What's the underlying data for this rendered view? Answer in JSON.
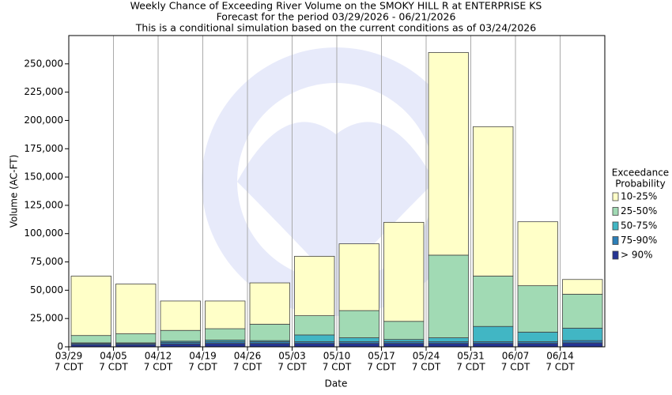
{
  "chart_data": {
    "type": "stacked_bar",
    "title_lines": [
      "Weekly Chance of Exceeding River Volume on the SMOKY HILL R at ENTERPRISE KS",
      "Forecast for the period 03/29/2026 - 06/21/2026",
      "This is a conditional simulation based on the current conditions as of 03/24/2026"
    ],
    "x_label": "Date",
    "y_label": "Volume (AC-FT)",
    "categories": [
      "03/29",
      "04/05",
      "04/12",
      "04/19",
      "04/26",
      "05/03",
      "05/10",
      "05/17",
      "05/24",
      "05/31",
      "06/07",
      "06/14"
    ],
    "category_sublabels": [
      "7 CDT",
      "7 CDT",
      "7 CDT",
      "7 CDT",
      "7 CDT",
      "7 CDT",
      "7 CDT",
      "7 CDT",
      "7 CDT",
      "7 CDT",
      "7 CDT",
      "7 CDT"
    ],
    "legend_title": [
      "Exceedance",
      "Probability"
    ],
    "series": [
      {
        "name": "> 90%",
        "color": "#253494",
        "values": [
          2000,
          2000,
          2500,
          3000,
          3000,
          3000,
          3000,
          3000,
          3000,
          3000,
          3000,
          3500
        ]
      },
      {
        "name": "75-90%",
        "color": "#2c7fb8",
        "values": [
          1000,
          1000,
          1500,
          1500,
          1500,
          1500,
          1500,
          1500,
          1500,
          1500,
          1500,
          2000
        ]
      },
      {
        "name": "50-75%",
        "color": "#41b6c4",
        "values": [
          500,
          500,
          1000,
          1500,
          1000,
          6000,
          3500,
          2000,
          3500,
          13500,
          8500,
          11000
        ]
      },
      {
        "name": "25-50%",
        "color": "#a1dab4",
        "values": [
          6500,
          8000,
          9500,
          10000,
          14500,
          17000,
          24000,
          16000,
          73000,
          44500,
          41000,
          30000
        ]
      },
      {
        "name": "10-25%",
        "color": "#ffffc8",
        "values": [
          52500,
          44000,
          26000,
          24500,
          36500,
          52500,
          59000,
          87500,
          179000,
          132000,
          56500,
          13000
        ]
      }
    ],
    "ylim": [
      0,
      275000
    ],
    "yticks": [
      0,
      {
        "value": 25000,
        "label": "25,000"
      },
      {
        "value": 50000,
        "label": "50,000"
      },
      {
        "value": 75000,
        "label": "75,000"
      },
      {
        "value": 100000,
        "label": "100,000"
      },
      {
        "value": 125000,
        "label": "125,000"
      },
      {
        "value": 150000,
        "label": "150,000"
      },
      {
        "value": 175000,
        "label": "175,000"
      },
      {
        "value": 200000,
        "label": "200,000"
      },
      {
        "value": 225000,
        "label": "225,000"
      },
      {
        "value": 250000,
        "label": "250,000"
      }
    ],
    "grid": true
  }
}
